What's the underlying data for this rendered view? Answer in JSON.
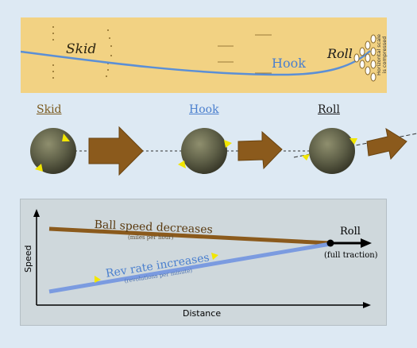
{
  "lane": {
    "skid_label": "Skid",
    "hook_label": "Hook",
    "roll_label": "Roll",
    "scale_note_line1": "Horizontal scale",
    "scale_note_line2": "is compressed"
  },
  "phases": {
    "skid_label": "Skid",
    "hook_label": "Hook",
    "roll_label": "Roll"
  },
  "graph": {
    "ball_speed_label": "Ball speed decreases",
    "ball_speed_units": "(miles per hour)",
    "rev_rate_label": "Rev rate increases",
    "rev_rate_units": "(revolutions per minute)",
    "roll_label": "Roll",
    "traction_label": "(full traction)",
    "y_axis_label": "Speed",
    "x_axis_label": "Distance"
  },
  "colors": {
    "lane": "#f2d283",
    "path": "#5b8fd6",
    "skid_text": "#7a5a1e",
    "hook_text": "#4a7fce",
    "arrow": "#8b5a1c",
    "speed_line": "#8b5a1c",
    "rev_line": "#7b9be0",
    "marker": "#f2e600"
  }
}
